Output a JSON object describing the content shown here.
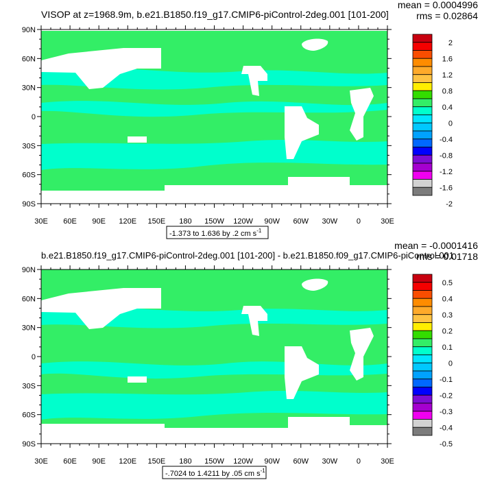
{
  "panels": [
    {
      "title": "VISOP at z=1968.9m, b.e21.B1850.f19_g17.CMIP6-piControl-2deg.001 [101-200]",
      "stats": {
        "mean_label": "mean = 0.0004996",
        "rms_label": "rms = 0.02864"
      },
      "range_label": {
        "text": "-1.373 to 1.636 by .2 cm s",
        "exponent": "-1"
      },
      "lat_labels": [
        "90N",
        "60N",
        "30N",
        "0",
        "30S",
        "60S",
        "90S"
      ],
      "lon_labels": [
        "30E",
        "60E",
        "90E",
        "120E",
        "150E",
        "180",
        "150W",
        "120W",
        "90W",
        "60W",
        "30W",
        "0",
        "30E"
      ],
      "colorbar": {
        "labels": [
          "2",
          "1.6",
          "1.2",
          "0.8",
          "0.4",
          "0",
          "-0.4",
          "-0.8",
          "-1.2",
          "-1.6",
          "-2"
        ],
        "colors": [
          "#c8000f",
          "#f50000",
          "#f94d00",
          "#ff8c00",
          "#ffaa2a",
          "#ffc343",
          "#ffee00",
          "#33dd00",
          "#33ee66",
          "#00ffcc",
          "#00e6ff",
          "#00c8ff",
          "#00a2ff",
          "#0068ff",
          "#0000ff",
          "#7d0dd4",
          "#a500d0",
          "#f000f0",
          "#d2d2d2",
          "#7c7c7c"
        ]
      }
    },
    {
      "title": "b.e21.B1850.f19_g17.CMIP6-piControl-2deg.001 [101-200] - b.e21.B1850.f09_g17.CMIP6-piControl.001",
      "stats": {
        "mean_label": "mean = -0.0001416",
        "rms_label": "rms = 0.01718"
      },
      "range_label": {
        "text": "-.7024 to 1.4211 by .05 cm s",
        "exponent": "-1"
      },
      "lat_labels": [
        "90N",
        "60N",
        "30N",
        "0",
        "30S",
        "60S",
        "90S"
      ],
      "lon_labels": [
        "30E",
        "60E",
        "90E",
        "120E",
        "150E",
        "180",
        "150W",
        "120W",
        "90W",
        "60W",
        "30W",
        "0",
        "30E"
      ],
      "colorbar": {
        "labels": [
          "0.5",
          "0.4",
          "0.3",
          "0.2",
          "0.1",
          "0",
          "-0.1",
          "-0.2",
          "-0.3",
          "-0.4",
          "-0.5"
        ],
        "colors": [
          "#c8000f",
          "#f50000",
          "#f94d00",
          "#ff8c00",
          "#ffaa2a",
          "#ffc343",
          "#ffee00",
          "#33dd00",
          "#33ee66",
          "#00ffcc",
          "#00e6ff",
          "#00c8ff",
          "#00a2ff",
          "#0068ff",
          "#0000ff",
          "#7d0dd4",
          "#a500d0",
          "#f000f0",
          "#d2d2d2",
          "#7c7c7c"
        ]
      }
    }
  ],
  "field_colors": {
    "land": "#ffffff",
    "green": "#33ee66",
    "cyan": "#00ffcc"
  }
}
